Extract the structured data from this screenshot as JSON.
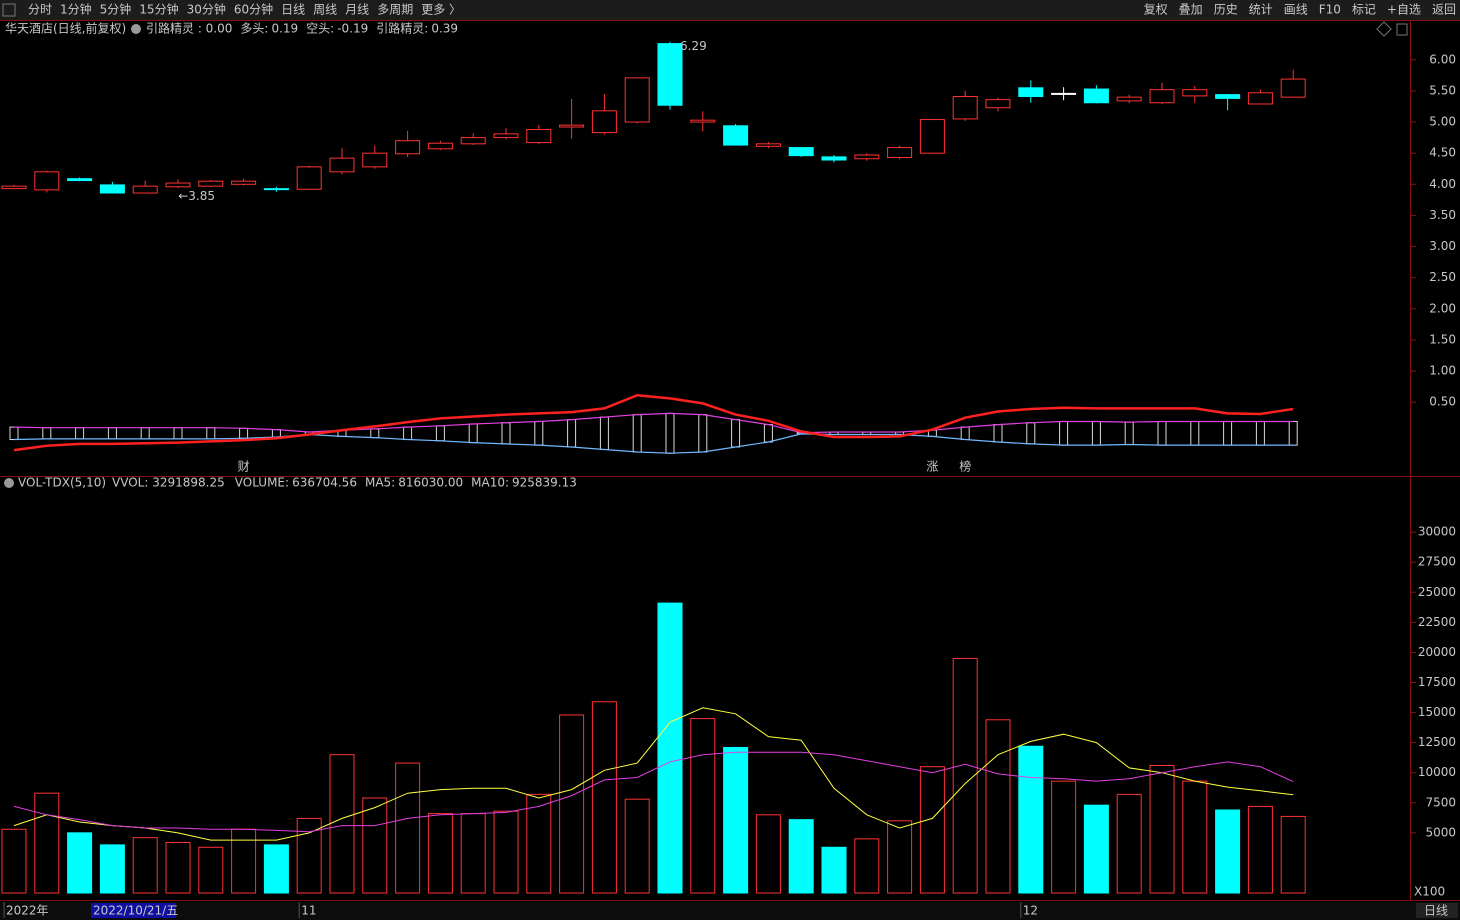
{
  "toolbar": {
    "left": [
      "分时",
      "1分钟",
      "5分钟",
      "15分钟",
      "30分钟",
      "60分钟",
      "日线",
      "周线",
      "月线",
      "多周期",
      "更多 〉"
    ],
    "active": "日线",
    "right": [
      "复权",
      "叠加",
      "历史",
      "统计",
      "画线",
      "F10",
      "标记",
      "+自选",
      "返回"
    ]
  },
  "chart_data": [
    {
      "type": "candlestick",
      "title": "华天酒店(日线,前复权)",
      "header_value": "引路精灵 : 0.00",
      "up_color": "#ff3232",
      "down_color": "#00ffff",
      "flat_color": "#ffffff",
      "open": [
        3.93,
        3.91,
        4.09,
        3.99,
        3.86,
        3.96,
        3.97,
        4.0,
        3.93,
        3.92,
        4.2,
        4.28,
        4.49,
        4.57,
        4.65,
        4.75,
        4.67,
        4.92,
        4.83,
        5.0,
        6.26,
        5.0,
        4.94,
        4.61,
        4.59,
        4.44,
        4.41,
        4.43,
        4.5,
        5.05,
        5.23,
        5.55,
        5.46,
        5.53,
        5.34,
        5.31,
        5.42,
        5.44,
        5.29,
        5.4
      ],
      "high": [
        3.99,
        4.22,
        4.11,
        4.04,
        4.06,
        4.08,
        4.07,
        4.09,
        3.96,
        4.3,
        4.58,
        4.62,
        4.86,
        4.7,
        4.82,
        4.9,
        4.95,
        5.37,
        5.45,
        5.71,
        6.29,
        5.17,
        4.97,
        4.68,
        4.6,
        4.47,
        4.5,
        4.62,
        5.05,
        5.5,
        5.39,
        5.67,
        5.56,
        5.59,
        5.44,
        5.63,
        5.58,
        5.45,
        5.52,
        5.84
      ],
      "low": [
        3.92,
        3.87,
        4.05,
        3.86,
        3.85,
        3.94,
        3.96,
        3.98,
        3.88,
        3.91,
        4.16,
        4.25,
        4.44,
        4.55,
        4.63,
        4.72,
        4.65,
        4.73,
        4.8,
        4.98,
        5.2,
        4.85,
        4.63,
        4.58,
        4.44,
        4.35,
        4.38,
        4.4,
        4.5,
        5.02,
        5.17,
        5.31,
        5.35,
        5.3,
        5.3,
        5.29,
        5.31,
        5.19,
        5.29,
        5.4
      ],
      "close": [
        3.97,
        4.2,
        4.06,
        3.86,
        3.97,
        4.02,
        4.05,
        4.05,
        3.92,
        4.28,
        4.42,
        4.5,
        4.7,
        4.66,
        4.75,
        4.81,
        4.88,
        4.95,
        5.18,
        5.71,
        5.27,
        5.03,
        4.63,
        4.65,
        4.46,
        4.39,
        4.47,
        4.59,
        5.04,
        5.41,
        5.36,
        5.41,
        5.46,
        5.31,
        5.4,
        5.52,
        5.52,
        5.38,
        5.47,
        5.69
      ],
      "max_label": "6.29",
      "min_label": "←3.85",
      "series": [
        {
          "name": "多头:",
          "legend_value": "0.19",
          "color": "#e040e0",
          "values": [
            0.1,
            0.09,
            0.09,
            0.09,
            0.09,
            0.09,
            0.09,
            0.08,
            0.06,
            0.02,
            0.05,
            0.07,
            0.1,
            0.12,
            0.15,
            0.17,
            0.19,
            0.22,
            0.26,
            0.3,
            0.32,
            0.3,
            0.22,
            0.14,
            0.01,
            0.02,
            0.02,
            0.02,
            0.05,
            0.1,
            0.14,
            0.17,
            0.19,
            0.19,
            0.18,
            0.19,
            0.19,
            0.19,
            0.19,
            0.19
          ]
        },
        {
          "name": "空头:",
          "legend_value": "-0.19",
          "color": "#70b8ff",
          "values": [
            -0.1,
            -0.09,
            -0.09,
            -0.09,
            -0.09,
            -0.09,
            -0.09,
            -0.08,
            -0.06,
            -0.02,
            -0.05,
            -0.07,
            -0.1,
            -0.12,
            -0.15,
            -0.17,
            -0.19,
            -0.22,
            -0.26,
            -0.3,
            -0.32,
            -0.3,
            -0.22,
            -0.14,
            -0.01,
            -0.02,
            -0.02,
            -0.02,
            -0.05,
            -0.1,
            -0.14,
            -0.17,
            -0.19,
            -0.19,
            -0.18,
            -0.19,
            -0.19,
            -0.19,
            -0.19,
            -0.19
          ]
        },
        {
          "name": "引路精灵:",
          "legend_value": "0.39",
          "color": "#ff2020",
          "values": [
            -0.27,
            -0.2,
            -0.17,
            -0.17,
            -0.16,
            -0.15,
            -0.13,
            -0.11,
            -0.08,
            -0.02,
            0.05,
            0.11,
            0.18,
            0.24,
            0.27,
            0.3,
            0.32,
            0.34,
            0.4,
            0.61,
            0.56,
            0.48,
            0.3,
            0.2,
            0.03,
            -0.06,
            -0.06,
            -0.05,
            0.06,
            0.25,
            0.35,
            0.39,
            0.41,
            0.4,
            0.4,
            0.4,
            0.4,
            0.32,
            0.31,
            0.39
          ]
        }
      ],
      "events": [
        null,
        null,
        null,
        null,
        null,
        null,
        null,
        "财",
        null,
        null,
        null,
        null,
        null,
        null,
        null,
        null,
        null,
        null,
        null,
        null,
        null,
        null,
        null,
        null,
        null,
        null,
        null,
        null,
        "涨",
        "榜",
        null,
        null,
        null,
        null,
        null,
        null,
        null,
        null,
        null,
        null
      ],
      "ylim": [
        -0.67,
        6.35
      ],
      "yticks": [
        {
          "value": 0.5,
          "label": "0.50"
        },
        {
          "value": 1,
          "label": "1.00"
        },
        {
          "value": 1.5,
          "label": "1.50"
        },
        {
          "value": 2,
          "label": "2.00"
        },
        {
          "value": 2.5,
          "label": "2.50"
        },
        {
          "value": 3,
          "label": "3.00"
        },
        {
          "value": 3.5,
          "label": "3.50"
        },
        {
          "value": 4,
          "label": "4.00"
        },
        {
          "value": 4.5,
          "label": "4.50"
        },
        {
          "value": 5,
          "label": "5.00"
        },
        {
          "value": 5.5,
          "label": "5.50"
        },
        {
          "value": 6,
          "label": "6.00"
        }
      ]
    },
    {
      "type": "bar",
      "title": "VOL-TDX(5,10)",
      "stats": "VVOL: 3291898.25",
      "values_name": "VOLUME:",
      "values_legend": "636704.56",
      "values_legend_color": "#ffff40",
      "categories": [
        "2022年",
        null,
        null,
        null,
        null,
        null,
        null,
        null,
        null,
        "11",
        null,
        null,
        null,
        null,
        null,
        null,
        null,
        null,
        null,
        null,
        null,
        null,
        null,
        null,
        null,
        null,
        null,
        null,
        null,
        null,
        null,
        "12",
        null,
        null,
        null,
        null,
        null,
        null,
        null,
        null
      ],
      "values": [
        5300,
        8300,
        5000,
        4000,
        4600,
        4200,
        3800,
        5300,
        4000,
        6200,
        11500,
        7900,
        10800,
        6600,
        6600,
        6800,
        8200,
        14800,
        15900,
        7800,
        24100,
        14500,
        12100,
        6500,
        6100,
        3800,
        4500,
        6000,
        10500,
        19500,
        14400,
        12200,
        9300,
        7300,
        8200,
        10600,
        9300,
        6900,
        7200,
        6367
      ],
      "series": [
        {
          "name": "MA5:",
          "legend_value": "816030.00",
          "color": "#ffff40",
          "values": [
            5600,
            6500,
            5900,
            5600,
            5400,
            5000,
            4400,
            4400,
            4400,
            5000,
            6200,
            7100,
            8300,
            8600,
            8700,
            8700,
            7900,
            8600,
            10200,
            10800,
            14200,
            15400,
            14900,
            13000,
            12700,
            8700,
            6500,
            5400,
            6200,
            9100,
            11500,
            12600,
            13200,
            12500,
            10400,
            10000,
            9300,
            8800,
            8500,
            8160
          ]
        },
        {
          "name": "MA10:",
          "legend_value": "925839.13",
          "color": "#e040e0",
          "values": [
            7200,
            6500,
            6100,
            5600,
            5400,
            5400,
            5300,
            5300,
            5200,
            5100,
            5600,
            5600,
            6200,
            6500,
            6600,
            6700,
            7200,
            8100,
            9400,
            9600,
            10900,
            11500,
            11700,
            11700,
            11700,
            11500,
            11000,
            10500,
            10000,
            10700,
            9900,
            9600,
            9500,
            9300,
            9500,
            10000,
            10500,
            10900,
            10500,
            9258
          ]
        }
      ],
      "unit_label": "X100",
      "ylim": [
        0,
        34500
      ],
      "yticks": [
        5000,
        7500,
        10000,
        12500,
        15000,
        17500,
        20000,
        22500,
        25000,
        27500,
        30000
      ]
    }
  ],
  "footer": {
    "cursor_label": "2022/10/21/五",
    "period": "日线"
  }
}
